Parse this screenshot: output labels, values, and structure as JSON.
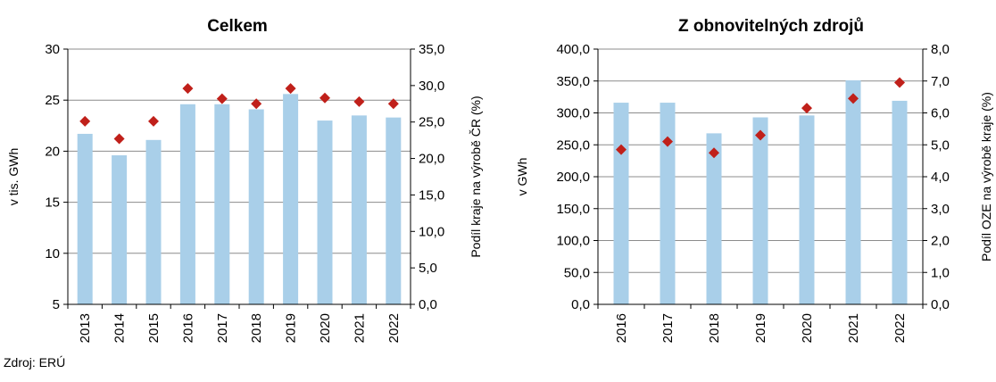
{
  "source": "Zdroj: ERÚ",
  "colors": {
    "bar": "#a9cfe9",
    "marker": "#c0201a",
    "axis": "#000000"
  },
  "chart_data": [
    {
      "type": "bar",
      "title": "Celkem",
      "categories": [
        "2013",
        "2014",
        "2015",
        "2016",
        "2017",
        "2018",
        "2019",
        "2020",
        "2021",
        "2022"
      ],
      "ylabel": "v tis. GWh",
      "ylabel2": "Podíl kraje na výrobě ČR (%)",
      "ylim": [
        5,
        30
      ],
      "ylim2": [
        0,
        35
      ],
      "yticks": [
        "5",
        "10",
        "15",
        "20",
        "25",
        "30"
      ],
      "yticks2": [
        "0,0",
        "5,0",
        "10,0",
        "15,0",
        "20,0",
        "25,0",
        "30,0",
        "35,0"
      ],
      "grid": true,
      "series": [
        {
          "type": "bar",
          "axis": "left",
          "values": [
            21.7,
            19.6,
            21.1,
            24.6,
            24.6,
            24.1,
            25.6,
            23.0,
            23.5,
            23.3
          ]
        },
        {
          "type": "scatter",
          "axis": "right",
          "marker": "diamond",
          "values": [
            25.1,
            22.7,
            25.1,
            29.6,
            28.2,
            27.5,
            29.6,
            28.3,
            27.8,
            27.5
          ]
        }
      ]
    },
    {
      "type": "bar",
      "title": "Z obnovitelných zdrojů",
      "categories": [
        "2016",
        "2017",
        "2018",
        "2019",
        "2020",
        "2021",
        "2022"
      ],
      "ylabel": "v GWh",
      "ylabel2": "Podíl OZE na výrobě kraje (%)",
      "ylim": [
        0,
        400
      ],
      "ylim2": [
        0,
        8
      ],
      "yticks": [
        "0,0",
        "50,0",
        "100,0",
        "150,0",
        "200,0",
        "250,0",
        "300,0",
        "350,0",
        "400,0"
      ],
      "yticks2": [
        "0,0",
        "1,0",
        "2,0",
        "3,0",
        "4,0",
        "5,0",
        "6,0",
        "7,0",
        "8,0"
      ],
      "grid": true,
      "series": [
        {
          "type": "bar",
          "axis": "left",
          "values": [
            316,
            316,
            268,
            293,
            296,
            351,
            319
          ]
        },
        {
          "type": "scatter",
          "axis": "right",
          "marker": "diamond",
          "values": [
            4.85,
            5.1,
            4.75,
            5.3,
            6.15,
            6.45,
            6.95
          ]
        }
      ]
    }
  ]
}
